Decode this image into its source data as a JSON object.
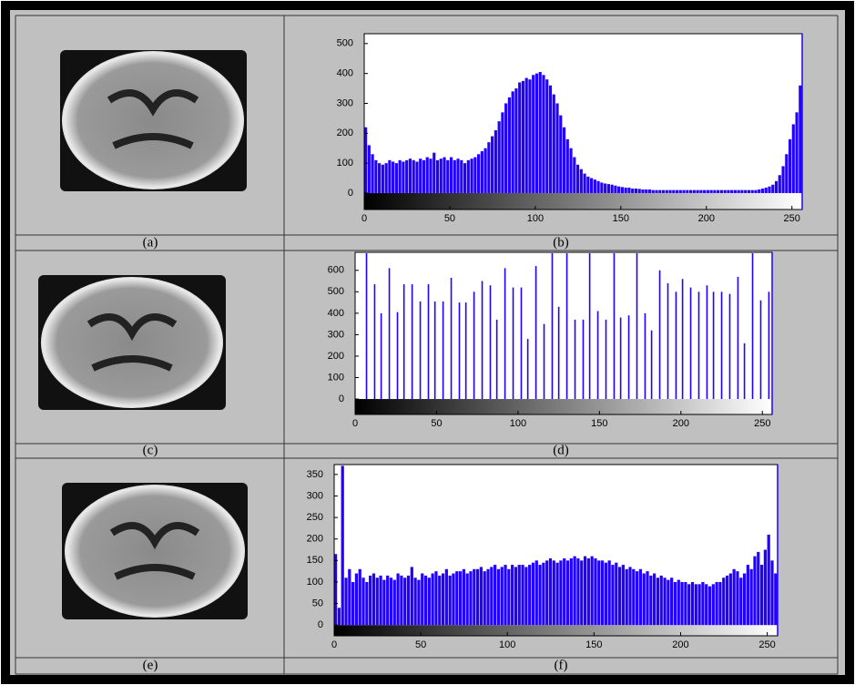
{
  "captions": [
    "(a)",
    "(b)",
    "(c)",
    "(d)",
    "(e)",
    "(f)"
  ],
  "chart_data": [
    {
      "type": "histogram",
      "color": "#2200ff",
      "bins": [
        0,
        2,
        4,
        6,
        8,
        10,
        12,
        14,
        16,
        18,
        20,
        22,
        24,
        26,
        28,
        30,
        32,
        34,
        36,
        38,
        40,
        42,
        44,
        46,
        48,
        50,
        52,
        54,
        56,
        58,
        60,
        62,
        64,
        66,
        68,
        70,
        72,
        74,
        76,
        78,
        80,
        82,
        84,
        86,
        88,
        90,
        92,
        94,
        96,
        98,
        100,
        102,
        104,
        106,
        108,
        110,
        112,
        114,
        116,
        118,
        120,
        122,
        124,
        126,
        128,
        130,
        132,
        134,
        136,
        138,
        140,
        142,
        144,
        146,
        148,
        150,
        152,
        154,
        156,
        158,
        160,
        162,
        164,
        166,
        168,
        170,
        172,
        174,
        176,
        178,
        180,
        182,
        184,
        186,
        188,
        190,
        192,
        194,
        196,
        198,
        200,
        202,
        204,
        206,
        208,
        210,
        212,
        214,
        216,
        218,
        220,
        222,
        224,
        226,
        228,
        230,
        232,
        234,
        236,
        238,
        240,
        242,
        244,
        246,
        248,
        250,
        252,
        254,
        256
      ],
      "values": [
        220,
        160,
        130,
        110,
        100,
        95,
        100,
        110,
        105,
        100,
        110,
        105,
        110,
        115,
        110,
        105,
        115,
        110,
        120,
        115,
        135,
        110,
        115,
        120,
        110,
        120,
        110,
        115,
        110,
        100,
        110,
        115,
        120,
        130,
        140,
        150,
        170,
        190,
        210,
        240,
        270,
        300,
        320,
        340,
        350,
        370,
        375,
        385,
        380,
        395,
        400,
        405,
        395,
        380,
        360,
        330,
        300,
        260,
        220,
        180,
        150,
        120,
        95,
        80,
        65,
        55,
        50,
        45,
        40,
        35,
        32,
        30,
        28,
        25,
        22,
        20,
        18,
        18,
        15,
        15,
        14,
        12,
        12,
        12,
        10,
        10,
        10,
        10,
        10,
        10,
        10,
        10,
        10,
        10,
        10,
        10,
        10,
        10,
        10,
        10,
        10,
        10,
        10,
        10,
        10,
        10,
        10,
        10,
        10,
        10,
        10,
        10,
        10,
        10,
        10,
        12,
        15,
        18,
        22,
        28,
        40,
        60,
        90,
        130,
        180,
        230,
        270,
        360
      ],
      "xlim": [
        0,
        256
      ],
      "ylim": [
        -55,
        533
      ],
      "xticks": [
        0,
        50,
        100,
        150,
        200,
        250
      ],
      "yticks": [
        0,
        100,
        200,
        300,
        400,
        500
      ]
    },
    {
      "type": "bar",
      "color": "#2200ff",
      "x": [
        7,
        12,
        16,
        21,
        26,
        30,
        35,
        40,
        45,
        49,
        54,
        59,
        64,
        68,
        73,
        78,
        83,
        87,
        92,
        97,
        102,
        106,
        111,
        116,
        121,
        125,
        130,
        135,
        140,
        144,
        149,
        154,
        159,
        163,
        168,
        173,
        178,
        182,
        187,
        192,
        197,
        201,
        206,
        211,
        216,
        220,
        225,
        230,
        235,
        239,
        244,
        249,
        254
      ],
      "values": [
        680,
        535,
        400,
        610,
        405,
        535,
        535,
        455,
        535,
        455,
        455,
        565,
        450,
        450,
        500,
        550,
        530,
        370,
        610,
        520,
        520,
        280,
        620,
        350,
        680,
        430,
        680,
        370,
        370,
        680,
        410,
        370,
        680,
        380,
        390,
        680,
        400,
        320,
        600,
        540,
        500,
        560,
        520,
        500,
        530,
        500,
        500,
        490,
        570,
        260,
        680,
        460,
        500
      ],
      "xlim": [
        0,
        256
      ],
      "ylim": [
        -72,
        684
      ],
      "xticks": [
        0,
        50,
        100,
        150,
        200,
        250
      ],
      "yticks": [
        0,
        100,
        200,
        300,
        400,
        500,
        600
      ]
    },
    {
      "type": "histogram",
      "color": "#2200ff",
      "bins": [
        0,
        2,
        4,
        6,
        8,
        10,
        12,
        14,
        16,
        18,
        20,
        22,
        24,
        26,
        28,
        30,
        32,
        34,
        36,
        38,
        40,
        42,
        44,
        46,
        48,
        50,
        52,
        54,
        56,
        58,
        60,
        62,
        64,
        66,
        68,
        70,
        72,
        74,
        76,
        78,
        80,
        82,
        84,
        86,
        88,
        90,
        92,
        94,
        96,
        98,
        100,
        102,
        104,
        106,
        108,
        110,
        112,
        114,
        116,
        118,
        120,
        122,
        124,
        126,
        128,
        130,
        132,
        134,
        136,
        138,
        140,
        142,
        144,
        146,
        148,
        150,
        152,
        154,
        156,
        158,
        160,
        162,
        164,
        166,
        168,
        170,
        172,
        174,
        176,
        178,
        180,
        182,
        184,
        186,
        188,
        190,
        192,
        194,
        196,
        198,
        200,
        202,
        204,
        206,
        208,
        210,
        212,
        214,
        216,
        218,
        220,
        222,
        224,
        226,
        228,
        230,
        232,
        234,
        236,
        238,
        240,
        242,
        244,
        246,
        248,
        250,
        252,
        254,
        256
      ],
      "values": [
        165,
        40,
        370,
        110,
        130,
        100,
        120,
        130,
        110,
        100,
        115,
        120,
        110,
        115,
        105,
        115,
        110,
        105,
        120,
        115,
        110,
        115,
        135,
        110,
        105,
        120,
        115,
        110,
        120,
        125,
        115,
        120,
        130,
        115,
        120,
        125,
        125,
        130,
        120,
        125,
        130,
        130,
        135,
        125,
        130,
        135,
        140,
        130,
        135,
        140,
        130,
        140,
        135,
        140,
        140,
        135,
        140,
        145,
        150,
        140,
        145,
        150,
        155,
        150,
        145,
        150,
        155,
        150,
        155,
        160,
        155,
        150,
        160,
        155,
        160,
        155,
        150,
        150,
        145,
        150,
        140,
        145,
        135,
        140,
        130,
        135,
        130,
        125,
        130,
        120,
        125,
        115,
        120,
        110,
        115,
        110,
        105,
        110,
        100,
        105,
        100,
        100,
        95,
        100,
        95,
        95,
        100,
        95,
        90,
        95,
        100,
        100,
        110,
        115,
        120,
        130,
        125,
        110,
        120,
        140,
        130,
        160,
        170,
        140,
        175,
        210,
        150,
        120
      ],
      "xlim": [
        0,
        256
      ],
      "ylim": [
        -25,
        373
      ],
      "xticks": [
        0,
        50,
        100,
        150,
        200,
        250
      ],
      "yticks": [
        0,
        50,
        100,
        150,
        200,
        250,
        300,
        350
      ]
    }
  ]
}
